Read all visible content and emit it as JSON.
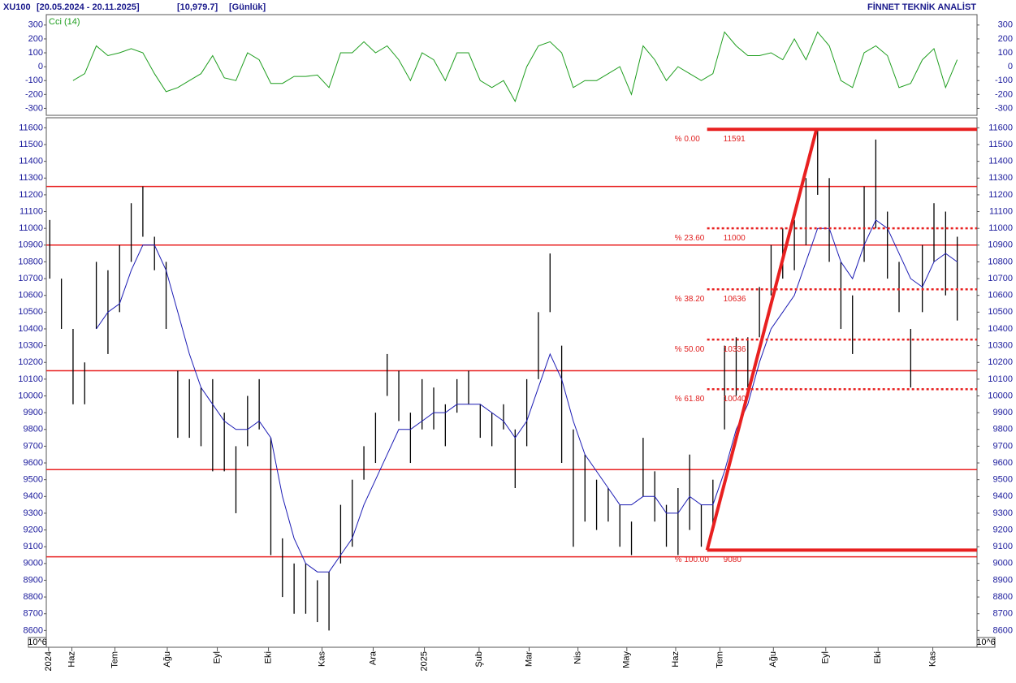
{
  "header": {
    "symbol": "XU100",
    "range": "[20.05.2024 - 20.11.2025]",
    "last": "[10,979.7]",
    "period": "[Günlük]",
    "brand": "FİNNET TEKNİK ANALİST"
  },
  "chart_data": [
    {
      "type": "line",
      "title": "Cci (14)",
      "color": "#1f9e1f",
      "x": [
        0,
        1,
        2,
        3,
        4,
        5,
        6,
        7,
        8,
        9,
        10,
        11,
        12,
        13,
        14,
        15,
        16,
        17,
        18,
        19,
        20,
        21,
        22,
        23,
        24,
        25,
        26,
        27,
        28,
        29,
        30,
        31,
        32,
        33,
        34,
        35,
        36,
        37,
        38,
        39,
        40,
        41,
        42,
        43,
        44,
        45,
        46,
        47,
        48,
        49,
        50,
        51,
        52,
        53,
        54,
        55,
        56,
        57,
        58,
        59,
        60,
        61,
        62,
        63,
        64,
        65,
        66,
        67,
        68,
        69,
        70,
        71,
        72,
        73,
        74,
        75,
        76,
        77,
        78
      ],
      "values": [
        null,
        null,
        -100,
        -50,
        150,
        80,
        100,
        130,
        100,
        -50,
        -180,
        -150,
        -100,
        -50,
        80,
        -80,
        -100,
        100,
        50,
        -120,
        -120,
        -70,
        -70,
        -60,
        -150,
        100,
        100,
        180,
        100,
        150,
        50,
        -100,
        100,
        50,
        -100,
        100,
        100,
        -100,
        -150,
        -100,
        -250,
        0,
        150,
        180,
        100,
        -150,
        -100,
        -100,
        -50,
        0,
        -200,
        150,
        50,
        -100,
        0,
        -50,
        -100,
        -50,
        250,
        150,
        80,
        80,
        100,
        50,
        200,
        50,
        250,
        150,
        -100,
        -150,
        100,
        150,
        80,
        -150,
        -120,
        50,
        130,
        -150,
        50
      ],
      "xlim": [
        -0.3,
        79.7
      ],
      "ylim": [
        -350,
        375
      ],
      "yticks": [
        -300,
        -200,
        -100,
        0,
        100,
        200,
        300
      ]
    },
    {
      "type": "range_bar",
      "color": "#000000",
      "scale_label": "10^6",
      "x": [
        0,
        1,
        2,
        3,
        4,
        5,
        6,
        7,
        8,
        9,
        10,
        11,
        12,
        13,
        14,
        15,
        16,
        17,
        18,
        19,
        20,
        21,
        22,
        23,
        24,
        25,
        26,
        27,
        28,
        29,
        30,
        31,
        32,
        33,
        34,
        35,
        36,
        37,
        38,
        39,
        40,
        41,
        42,
        43,
        44,
        45,
        46,
        47,
        48,
        49,
        50,
        51,
        52,
        53,
        54,
        55,
        56,
        57,
        58,
        59,
        60,
        61,
        62,
        63,
        64,
        65,
        66,
        67,
        68,
        69,
        70,
        71,
        72,
        73,
        74,
        75,
        76,
        77,
        78
      ],
      "high": [
        11050,
        10700,
        10400,
        10200,
        10800,
        10750,
        10900,
        11150,
        11250,
        10950,
        10800,
        10150,
        10100,
        10050,
        10100,
        9900,
        9700,
        10000,
        10100,
        9750,
        9150,
        9000,
        9000,
        8900,
        8950,
        9350,
        9500,
        9700,
        9900,
        10250,
        10150,
        9900,
        10100,
        10050,
        9950,
        10100,
        10150,
        9950,
        9900,
        9950,
        9800,
        10100,
        10500,
        10850,
        10300,
        9800,
        9650,
        9500,
        9450,
        9350,
        9250,
        9750,
        9550,
        9350,
        9450,
        9650,
        9350,
        9500,
        10300,
        10350,
        10350,
        10650,
        10900,
        11000,
        11050,
        11300,
        11590,
        11300,
        10800,
        10600,
        11250,
        11530,
        11100,
        10800,
        10400,
        10900,
        11150,
        11100,
        10950
      ],
      "low": [
        10700,
        10400,
        9950,
        9950,
        10400,
        10250,
        10500,
        10800,
        10950,
        10750,
        10400,
        9750,
        9750,
        9700,
        9550,
        9550,
        9300,
        9700,
        9800,
        9050,
        8800,
        8700,
        8700,
        8650,
        8600,
        9000,
        9100,
        9500,
        9600,
        10000,
        9850,
        9600,
        9800,
        9800,
        9700,
        9900,
        9950,
        9750,
        9700,
        9800,
        9450,
        9700,
        10100,
        10500,
        9600,
        9100,
        9250,
        9200,
        9250,
        9100,
        9050,
        9400,
        9250,
        9100,
        9050,
        9200,
        9100,
        9200,
        9800,
        10000,
        10050,
        10350,
        10600,
        10700,
        10750,
        10900,
        11200,
        10800,
        10400,
        10250,
        10800,
        11000,
        10700,
        10500,
        10050,
        10500,
        10800,
        10600,
        10450
      ],
      "moving_average": {
        "color": "#1c1cb4",
        "values": [
          null,
          null,
          null,
          null,
          10400,
          10500,
          10550,
          10750,
          10900,
          10900,
          10750,
          10500,
          10250,
          10050,
          9950,
          9850,
          9800,
          9800,
          9850,
          9750,
          9400,
          9150,
          9000,
          8950,
          8950,
          9050,
          9150,
          9350,
          9500,
          9650,
          9800,
          9800,
          9850,
          9900,
          9900,
          9950,
          9950,
          9950,
          9900,
          9850,
          9750,
          9850,
          10050,
          10250,
          10100,
          9850,
          9650,
          9550,
          9450,
          9350,
          9350,
          9400,
          9400,
          9300,
          9300,
          9400,
          9350,
          9350,
          9550,
          9800,
          9950,
          10200,
          10400,
          10500,
          10600,
          10800,
          11000,
          11000,
          10800,
          10700,
          10900,
          11050,
          11000,
          10850,
          10700,
          10650,
          10800,
          10850,
          10800
        ]
      },
      "levels": {
        "color": "#e82020",
        "values": [
          11250,
          10900,
          10150,
          9560,
          9040
        ]
      },
      "fibonacci": {
        "color": "#e82020",
        "start_x": 56.5,
        "end_x": 65.9,
        "low": 9080,
        "high": 11591,
        "levels": [
          {
            "label": "% 0.00",
            "value": 11591,
            "value_label": "11591"
          },
          {
            "label": "% 23.60",
            "value": 11000,
            "value_label": "11000"
          },
          {
            "label": "% 38.20",
            "value": 10636,
            "value_label": "10636"
          },
          {
            "label": "% 50.00",
            "value": 10336,
            "value_label": "10336"
          },
          {
            "label": "% 61.80",
            "value": 10040,
            "value_label": "10040"
          },
          {
            "label": "% 100.00",
            "value": 9080,
            "value_label": "9080"
          }
        ]
      },
      "xlim": [
        -0.3,
        79.7
      ],
      "ylim": [
        8500,
        11660
      ],
      "yticks": [
        8600,
        8700,
        8800,
        8900,
        9000,
        9100,
        9200,
        9300,
        9400,
        9500,
        9600,
        9700,
        9800,
        9900,
        10000,
        10100,
        10200,
        10300,
        10400,
        10500,
        10600,
        10700,
        10800,
        10900,
        11000,
        11100,
        11200,
        11300,
        11400,
        11500,
        11600
      ],
      "xticks": [
        {
          "value": -0.1,
          "label": "2024"
        },
        {
          "value": 1.9,
          "label": "Haz"
        },
        {
          "value": 5.6,
          "label": "Tem"
        },
        {
          "value": 10.1,
          "label": "Ağu"
        },
        {
          "value": 14.4,
          "label": "Eyl"
        },
        {
          "value": 18.8,
          "label": "Eki"
        },
        {
          "value": 23.4,
          "label": "Kas"
        },
        {
          "value": 27.8,
          "label": "Ara"
        },
        {
          "value": 32.2,
          "label": "2025"
        },
        {
          "value": 36.9,
          "label": "Şub"
        },
        {
          "value": 41.2,
          "label": "Mar"
        },
        {
          "value": 45.4,
          "label": "Nis"
        },
        {
          "value": 49.6,
          "label": "May"
        },
        {
          "value": 53.8,
          "label": "Haz"
        },
        {
          "value": 57.6,
          "label": "Tem"
        },
        {
          "value": 62.2,
          "label": "Ağu"
        },
        {
          "value": 66.7,
          "label": "Eyl"
        },
        {
          "value": 71.2,
          "label": "Eki"
        },
        {
          "value": 75.9,
          "label": "Kas"
        }
      ]
    }
  ]
}
